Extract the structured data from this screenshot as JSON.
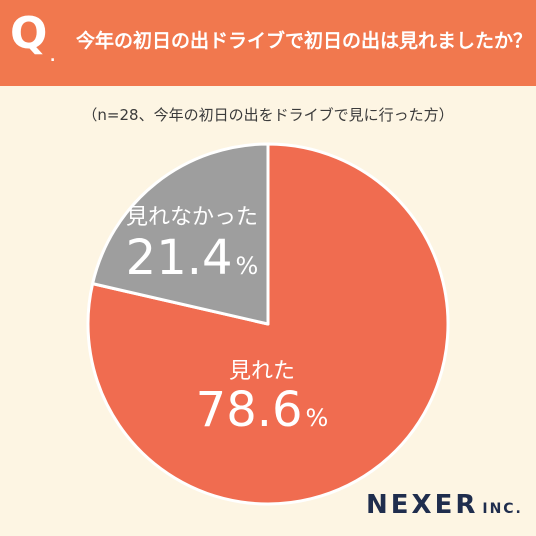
{
  "header": {
    "q_mark": "Q",
    "q_dot": ".",
    "question": "今年の初日の出ドライブで初日の出は見れましたか？"
  },
  "note": "（n=28、今年の初日の出をドライブで見に行った方）",
  "colors": {
    "header": "#f1784e",
    "background": "#fdf5e3",
    "slice_seen": "#f06c50",
    "slice_not_seen": "#9e9e9e"
  },
  "chart_data": {
    "type": "pie",
    "title": "",
    "start": "12 o'clock, clockwise",
    "slices": [
      {
        "label": "見れた",
        "value": 78.6,
        "value_text": "78.6",
        "unit": "%"
      },
      {
        "label": "見れなかった",
        "value": 21.4,
        "value_text": "21.4",
        "unit": "%"
      }
    ]
  },
  "logo": {
    "main": "NEXER",
    "sub": "INC."
  }
}
